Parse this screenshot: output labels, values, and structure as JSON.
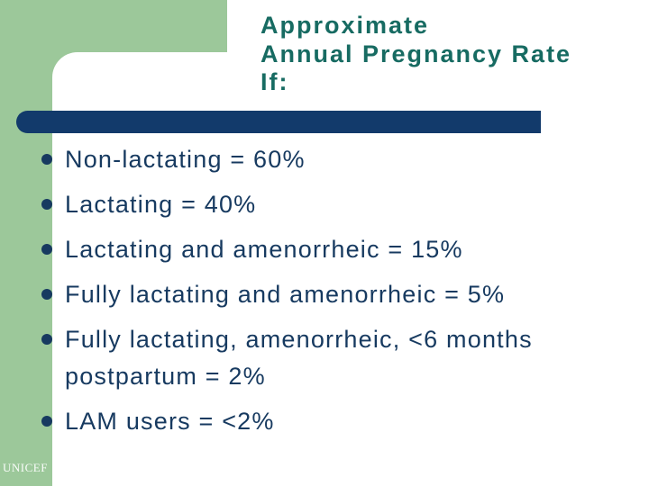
{
  "slide": {
    "title": "Approximate\nAnnual Pregnancy Rate\nIf:",
    "bullets": [
      "Non-lactating = 60%",
      "Lactating = 40%",
      "Lactating and amenorrheic = 15%",
      "Fully lactating and amenorrheic = 5%",
      "Fully lactating, amenorrheic, <6 months postpartum = 2%",
      "LAM users = <2%"
    ],
    "footer": "UNICEF",
    "colors": {
      "accent_green": "#9CC89A",
      "title_teal": "#176B62",
      "body_navy": "#173A60",
      "bar_navy": "#123A6B",
      "footer_white": "#FFFFFF"
    }
  }
}
